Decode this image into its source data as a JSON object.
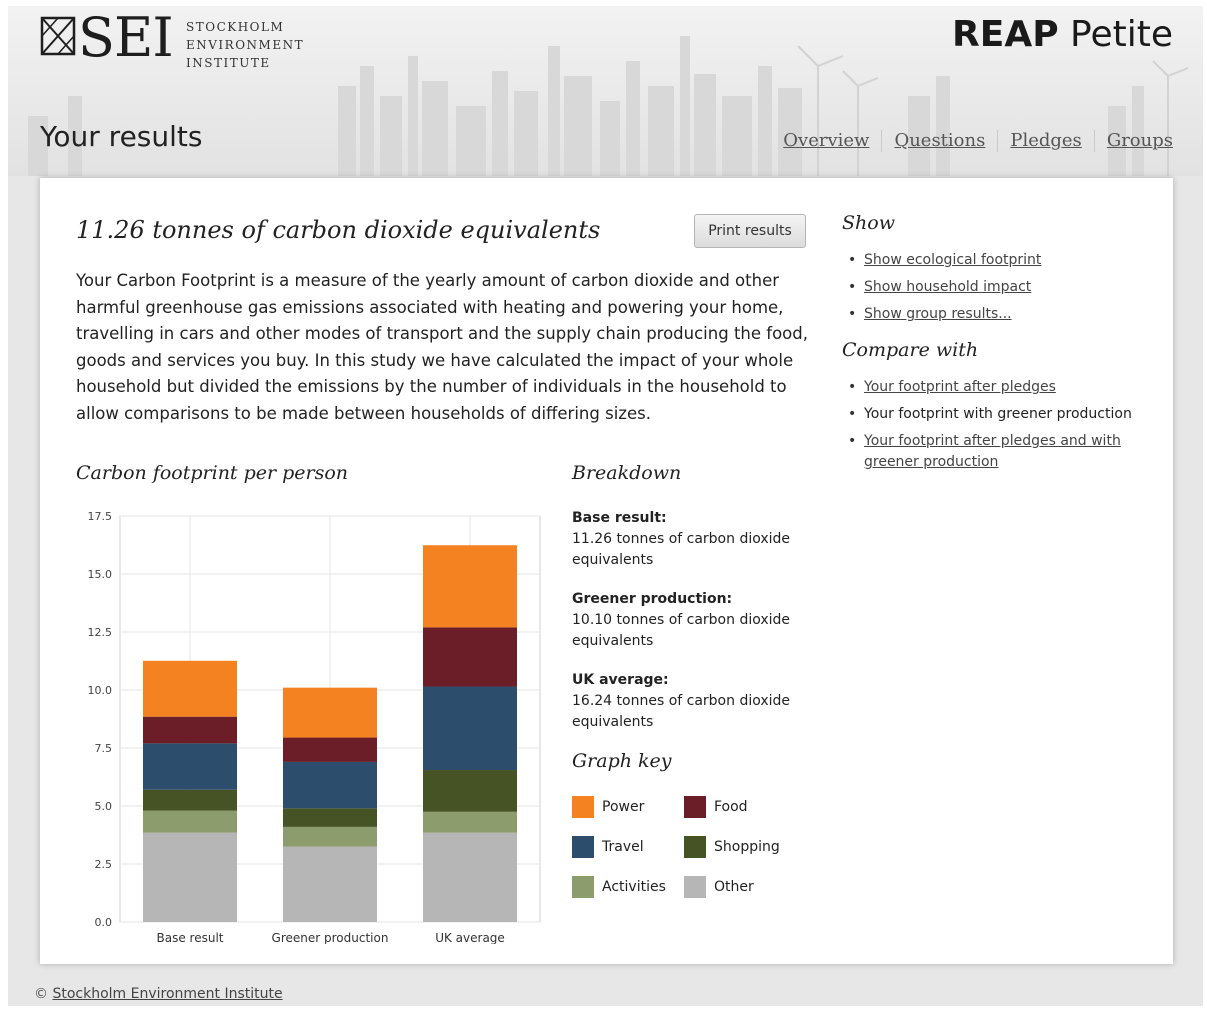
{
  "header": {
    "logo_text": "SEI",
    "logo_words": [
      "STOCKHOLM",
      "ENVIRONMENT",
      "INSTITUTE"
    ],
    "app_title_bold": "REAP",
    "app_title_light": "Petite",
    "page_heading": "Your results",
    "nav": [
      "Overview",
      "Questions",
      "Pledges",
      "Groups"
    ]
  },
  "main": {
    "heading": "11.26 tonnes of carbon dioxide equivalents",
    "print_label": "Print results",
    "intro": "Your Carbon Footprint is a measure of the yearly amount of carbon dioxide and other harmful greenhouse gas emissions associated with heating and powering your home, travelling in cars and other modes of transport and the supply chain producing the food, goods and services you buy. In this study we have calculated the impact of your whole household but divided the emissions by the number of individuals in the household to allow comparisons to be made between households of differing sizes.",
    "chart_title": "Carbon footprint per person",
    "breakdown_title": "Breakdown",
    "breakdown": [
      {
        "label": "Base result:",
        "text": "11.26 tonnes of carbon dioxide equivalents"
      },
      {
        "label": "Greener production:",
        "text": "10.10 tonnes of carbon dioxide equivalents"
      },
      {
        "label": "UK average:",
        "text": "16.24 tonnes of carbon dioxide equivalents"
      }
    ],
    "key_title": "Graph key",
    "key": [
      {
        "label": "Power",
        "color": "#f58220"
      },
      {
        "label": "Food",
        "color": "#6b1e27"
      },
      {
        "label": "Travel",
        "color": "#2d4d6d"
      },
      {
        "label": "Shopping",
        "color": "#465325"
      },
      {
        "label": "Activities",
        "color": "#8c9c6c"
      },
      {
        "label": "Other",
        "color": "#b6b6b6"
      }
    ]
  },
  "sidebar": {
    "show_title": "Show",
    "show_links": [
      "Show ecological footprint",
      "Show household impact",
      "Show group results..."
    ],
    "compare_title": "Compare with",
    "compare_links": [
      {
        "label": "Your footprint after pledges",
        "active": false
      },
      {
        "label": "Your footprint with greener production",
        "active": true
      },
      {
        "label": "Your footprint after pledges and with greener production",
        "active": false
      }
    ]
  },
  "footer": {
    "copyright": "©",
    "link": "Stockholm Environment Institute"
  },
  "chart_data": {
    "type": "bar",
    "stacked": true,
    "title": "Carbon footprint per person",
    "categories": [
      "Base result",
      "Greener production",
      "UK average"
    ],
    "ylim": [
      0,
      17.5
    ],
    "yticks": [
      "0.0",
      "2.5",
      "5.0",
      "7.5",
      "10.0",
      "12.5",
      "15.0",
      "17.5"
    ],
    "grid": true,
    "series": [
      {
        "name": "Other",
        "color": "#b6b6b6",
        "values": [
          3.85,
          3.25,
          3.85
        ]
      },
      {
        "name": "Activities",
        "color": "#8c9c6c",
        "values": [
          0.95,
          0.85,
          0.9
        ]
      },
      {
        "name": "Shopping",
        "color": "#465325",
        "values": [
          0.9,
          0.8,
          1.8
        ]
      },
      {
        "name": "Travel",
        "color": "#2d4d6d",
        "values": [
          2.0,
          2.0,
          3.6
        ]
      },
      {
        "name": "Food",
        "color": "#6b1e27",
        "values": [
          1.15,
          1.05,
          2.55
        ]
      },
      {
        "name": "Power",
        "color": "#f58220",
        "values": [
          2.41,
          2.15,
          3.54
        ]
      }
    ]
  }
}
